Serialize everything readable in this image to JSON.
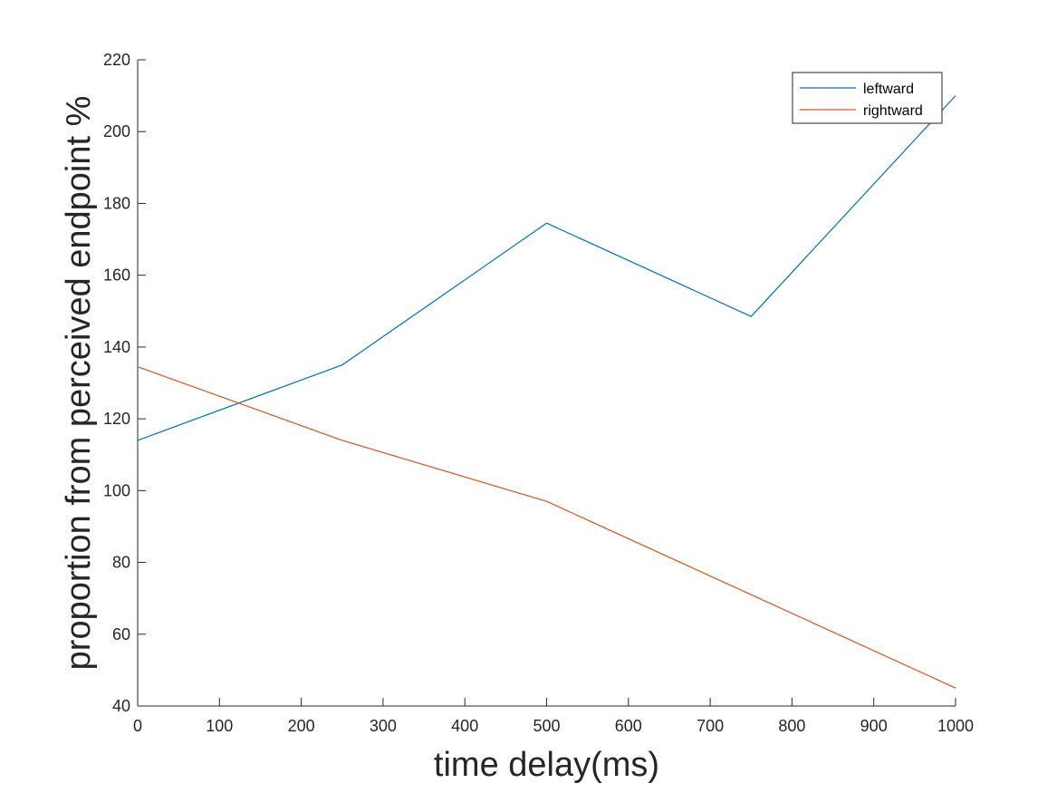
{
  "chart_data": {
    "type": "line",
    "title": "",
    "xlabel": "time delay(ms)",
    "ylabel": "proportion from perceived endpoint %",
    "xlim": [
      0,
      1000
    ],
    "ylim": [
      40,
      220
    ],
    "xticks": [
      0,
      100,
      200,
      300,
      400,
      500,
      600,
      700,
      800,
      900,
      1000
    ],
    "yticks": [
      40,
      60,
      80,
      100,
      120,
      140,
      160,
      180,
      200,
      220
    ],
    "x": [
      0,
      250,
      500,
      750,
      1000
    ],
    "grid": false,
    "legend_position": "top-right",
    "series": [
      {
        "name": "leftward",
        "color": "#0072BD",
        "values": [
          114,
          135,
          174.5,
          148.5,
          210
        ]
      },
      {
        "name": "rightward",
        "color": "#D95319",
        "values": [
          134.5,
          114,
          97,
          71,
          45
        ]
      }
    ]
  }
}
